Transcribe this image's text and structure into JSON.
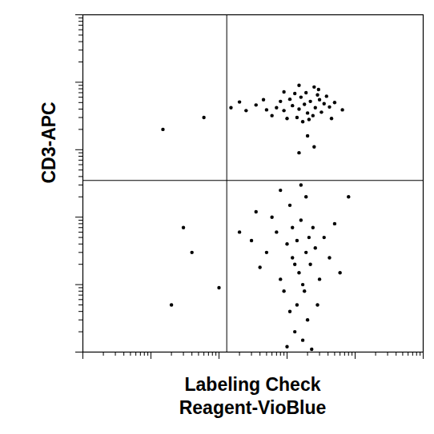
{
  "chart_data": {
    "type": "scatter",
    "xlabel": "Labeling Check\nReagent-VioBlue",
    "ylabel": "CD3-APC",
    "log": true,
    "grid": false,
    "tick_labels": false,
    "color": "#000000",
    "marker": "dot",
    "xlim": [
      1,
      100000
    ],
    "ylim": [
      1,
      100000
    ],
    "xticks": [
      1,
      10,
      100,
      1000,
      10000,
      100000
    ],
    "yticks": [
      1,
      10,
      100,
      1000,
      10000,
      100000
    ],
    "gates": {
      "x": 130,
      "y": 350
    },
    "x": [
      1800,
      1500,
      2200,
      1200,
      2600,
      900,
      3000,
      2000,
      1600,
      700,
      3500,
      1100,
      2400,
      1400,
      500,
      4200,
      2800,
      800,
      1900,
      350,
      3200,
      1300,
      600,
      2100,
      5000,
      250,
      1700,
      2900,
      450,
      3800,
      1000,
      150,
      6500,
      2500,
      200,
      1500,
      4500,
      900,
      2000,
      1500,
      2500,
      1500,
      1200,
      1800,
      1000,
      2200,
      800,
      1400,
      2600,
      700,
      1600,
      2000,
      1100,
      500,
      3000,
      1300,
      900,
      600,
      3500,
      1700,
      400,
      2400,
      1900,
      300,
      4200,
      1000,
      2800,
      350,
      5000,
      1600,
      800,
      2300,
      200,
      6000,
      1200,
      1400,
      1900,
      1700,
      1300,
      1100,
      2100,
      40,
      20,
      60,
      15,
      8000,
      30,
      100
    ],
    "y": [
      4700,
      4000,
      5200,
      4500,
      4200,
      3800,
      5500,
      3500,
      6000,
      4200,
      4800,
      5600,
      3200,
      3000,
      3900,
      4300,
      6500,
      5200,
      7000,
      4600,
      3600,
      6800,
      3200,
      2800,
      5000,
      3800,
      2600,
      7800,
      5500,
      6200,
      2900,
      4200,
      3900,
      8500,
      5100,
      9000,
      2900,
      7200,
      1600,
      900,
      1100,
      15,
      25,
      8,
      40,
      20,
      12,
      5,
      35,
      60,
      90,
      3,
      150,
      30,
      12,
      2,
      8,
      100,
      50,
      1.5,
      18,
      70,
      200,
      45,
      25,
      1.2,
      5,
      120,
      80,
      300,
      250,
      1.1,
      60,
      15,
      70,
      45,
      30,
      10,
      20,
      4,
      50,
      30,
      5,
      3000,
      2000,
      200,
      70,
      9
    ]
  }
}
